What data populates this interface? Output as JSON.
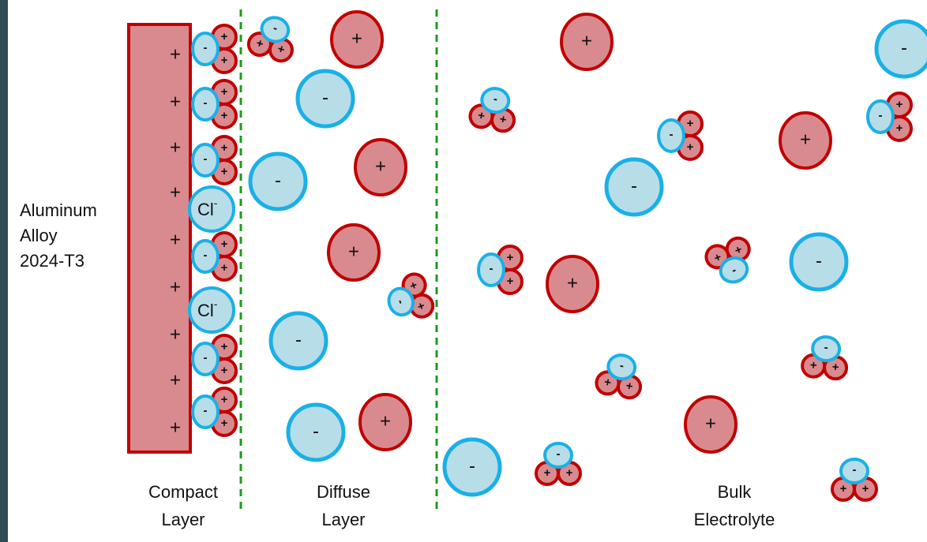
{
  "electrode": {
    "label_lines": [
      "Aluminum",
      "Alloy",
      "2024-T3"
    ],
    "charge": "+"
  },
  "regions": [
    {
      "lines": [
        "Compact",
        "Layer"
      ]
    },
    {
      "lines": [
        "Diffuse",
        "Layer"
      ]
    },
    {
      "lines": [
        "Bulk",
        "Electrolyte"
      ]
    }
  ],
  "ions": {
    "cation": "+",
    "anion": "-",
    "chloride": "Cl",
    "chloride_charge": "-"
  }
}
